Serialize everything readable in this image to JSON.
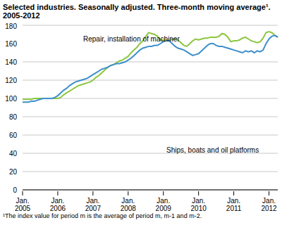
{
  "chart_data": {
    "type": "line",
    "title": "Selected industries. Seasonally adjusted. Three-month moving average¹. 2005-2012",
    "footnote": "¹The index value for period m is the average of period m, m-1 and m-2.",
    "categories": [
      "Jan. 2005",
      null,
      null,
      null,
      null,
      null,
      null,
      null,
      null,
      null,
      null,
      null,
      "Jan. 2006",
      null,
      null,
      null,
      null,
      null,
      null,
      null,
      null,
      null,
      null,
      null,
      "Jan. 2007",
      null,
      null,
      null,
      null,
      null,
      null,
      null,
      null,
      null,
      null,
      null,
      "Jan. 2008",
      null,
      null,
      null,
      null,
      null,
      null,
      null,
      null,
      null,
      null,
      null,
      "Jan. 2009",
      null,
      null,
      null,
      null,
      null,
      null,
      null,
      null,
      null,
      null,
      null,
      "Jan. 2010",
      null,
      null,
      null,
      null,
      null,
      null,
      null,
      null,
      null,
      null,
      null,
      "Jan. 2011",
      null,
      null,
      null,
      null,
      null,
      null,
      null,
      null,
      null,
      null,
      null,
      "Jan. 2012",
      null,
      null,
      null
    ],
    "series": [
      {
        "name": "Repair, installation of machiner",
        "color": "#8cc63e",
        "values": [
          99,
          99,
          99,
          99,
          100,
          100,
          100,
          100,
          100,
          100,
          100,
          100,
          100,
          101,
          104,
          106,
          108,
          110,
          112,
          114,
          115,
          116,
          117,
          118,
          120,
          123,
          125,
          128,
          131,
          134,
          136,
          137,
          139,
          141,
          142,
          144,
          146,
          150,
          153,
          156,
          160,
          163,
          168,
          172,
          171,
          170,
          168,
          164,
          164,
          164,
          163,
          165,
          165,
          164,
          161,
          158,
          157,
          160,
          163,
          165,
          164,
          165,
          166,
          166,
          167,
          167,
          167,
          168,
          171,
          170,
          167,
          162,
          163,
          163,
          164,
          166,
          167,
          165,
          163,
          162,
          161,
          162,
          166,
          172,
          173,
          172,
          169,
          167
        ]
      },
      {
        "name": "Ships, boats and oil platforms",
        "color": "#3d8fcb",
        "values": [
          96,
          96,
          96,
          97,
          97,
          98,
          99,
          100,
          100,
          100,
          100,
          101,
          103,
          106,
          109,
          111,
          114,
          116,
          118,
          119,
          120,
          121,
          122,
          124,
          126,
          128,
          130,
          132,
          133,
          134,
          136,
          137,
          138,
          138,
          139,
          140,
          142,
          144,
          147,
          150,
          153,
          155,
          156,
          157,
          157,
          158,
          158,
          160,
          162,
          163,
          163,
          160,
          157,
          155,
          154,
          153,
          151,
          149,
          147,
          148,
          149,
          152,
          155,
          158,
          160,
          160,
          158,
          157,
          157,
          156,
          155,
          154,
          153,
          152,
          151,
          150,
          152,
          151,
          152,
          150,
          152,
          151,
          153,
          160,
          165,
          168,
          169,
          167
        ]
      }
    ],
    "ylim": [
      0,
      180
    ],
    "yticks": [
      0,
      20,
      40,
      60,
      80,
      100,
      120,
      140,
      160,
      180
    ],
    "grid": true
  }
}
